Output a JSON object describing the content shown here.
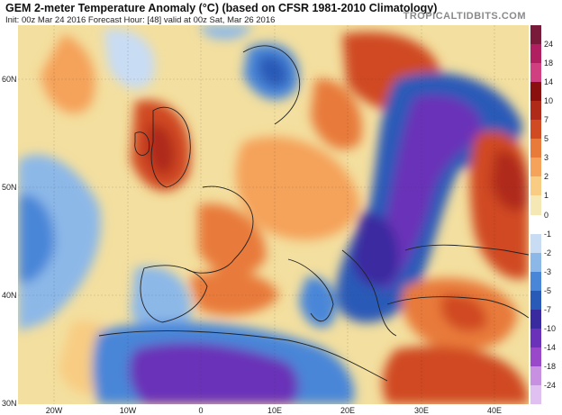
{
  "header": {
    "title": "GEM 2-meter Temperature Anomaly (°C) (based on CFSR 1981-2010 Climatology)",
    "subtitle": "Init: 00z Mar 24 2016   Forecast Hour: [48]   valid at 00z Sat, Mar 26 2016",
    "brand": "TROPICALTIDBITS.COM"
  },
  "map": {
    "lat_labels": [
      "60N",
      "50N",
      "40N",
      "30N"
    ],
    "lon_labels": [
      "20W",
      "10W",
      "0",
      "10E",
      "20E",
      "30E",
      "40E"
    ]
  },
  "colorbar": {
    "labels": [
      "24",
      "18",
      "14",
      "10",
      "7",
      "5",
      "3",
      "2",
      "1",
      "0",
      "-1",
      "-2",
      "-3",
      "-5",
      "-7",
      "-10",
      "-14",
      "-18",
      "-24"
    ],
    "colors": [
      "#7a1a3a",
      "#b02060",
      "#d04080",
      "#8a1010",
      "#b02a1a",
      "#d04a22",
      "#e87a3a",
      "#f5a25a",
      "#f8cc82",
      "#f6e8b4",
      "#ffffff",
      "#c8dcf4",
      "#8cb8e8",
      "#4a86d8",
      "#2a5ab8",
      "#3a2aa0",
      "#6a32b8",
      "#9848c8",
      "#c890e0",
      "#e0c0f0"
    ]
  }
}
